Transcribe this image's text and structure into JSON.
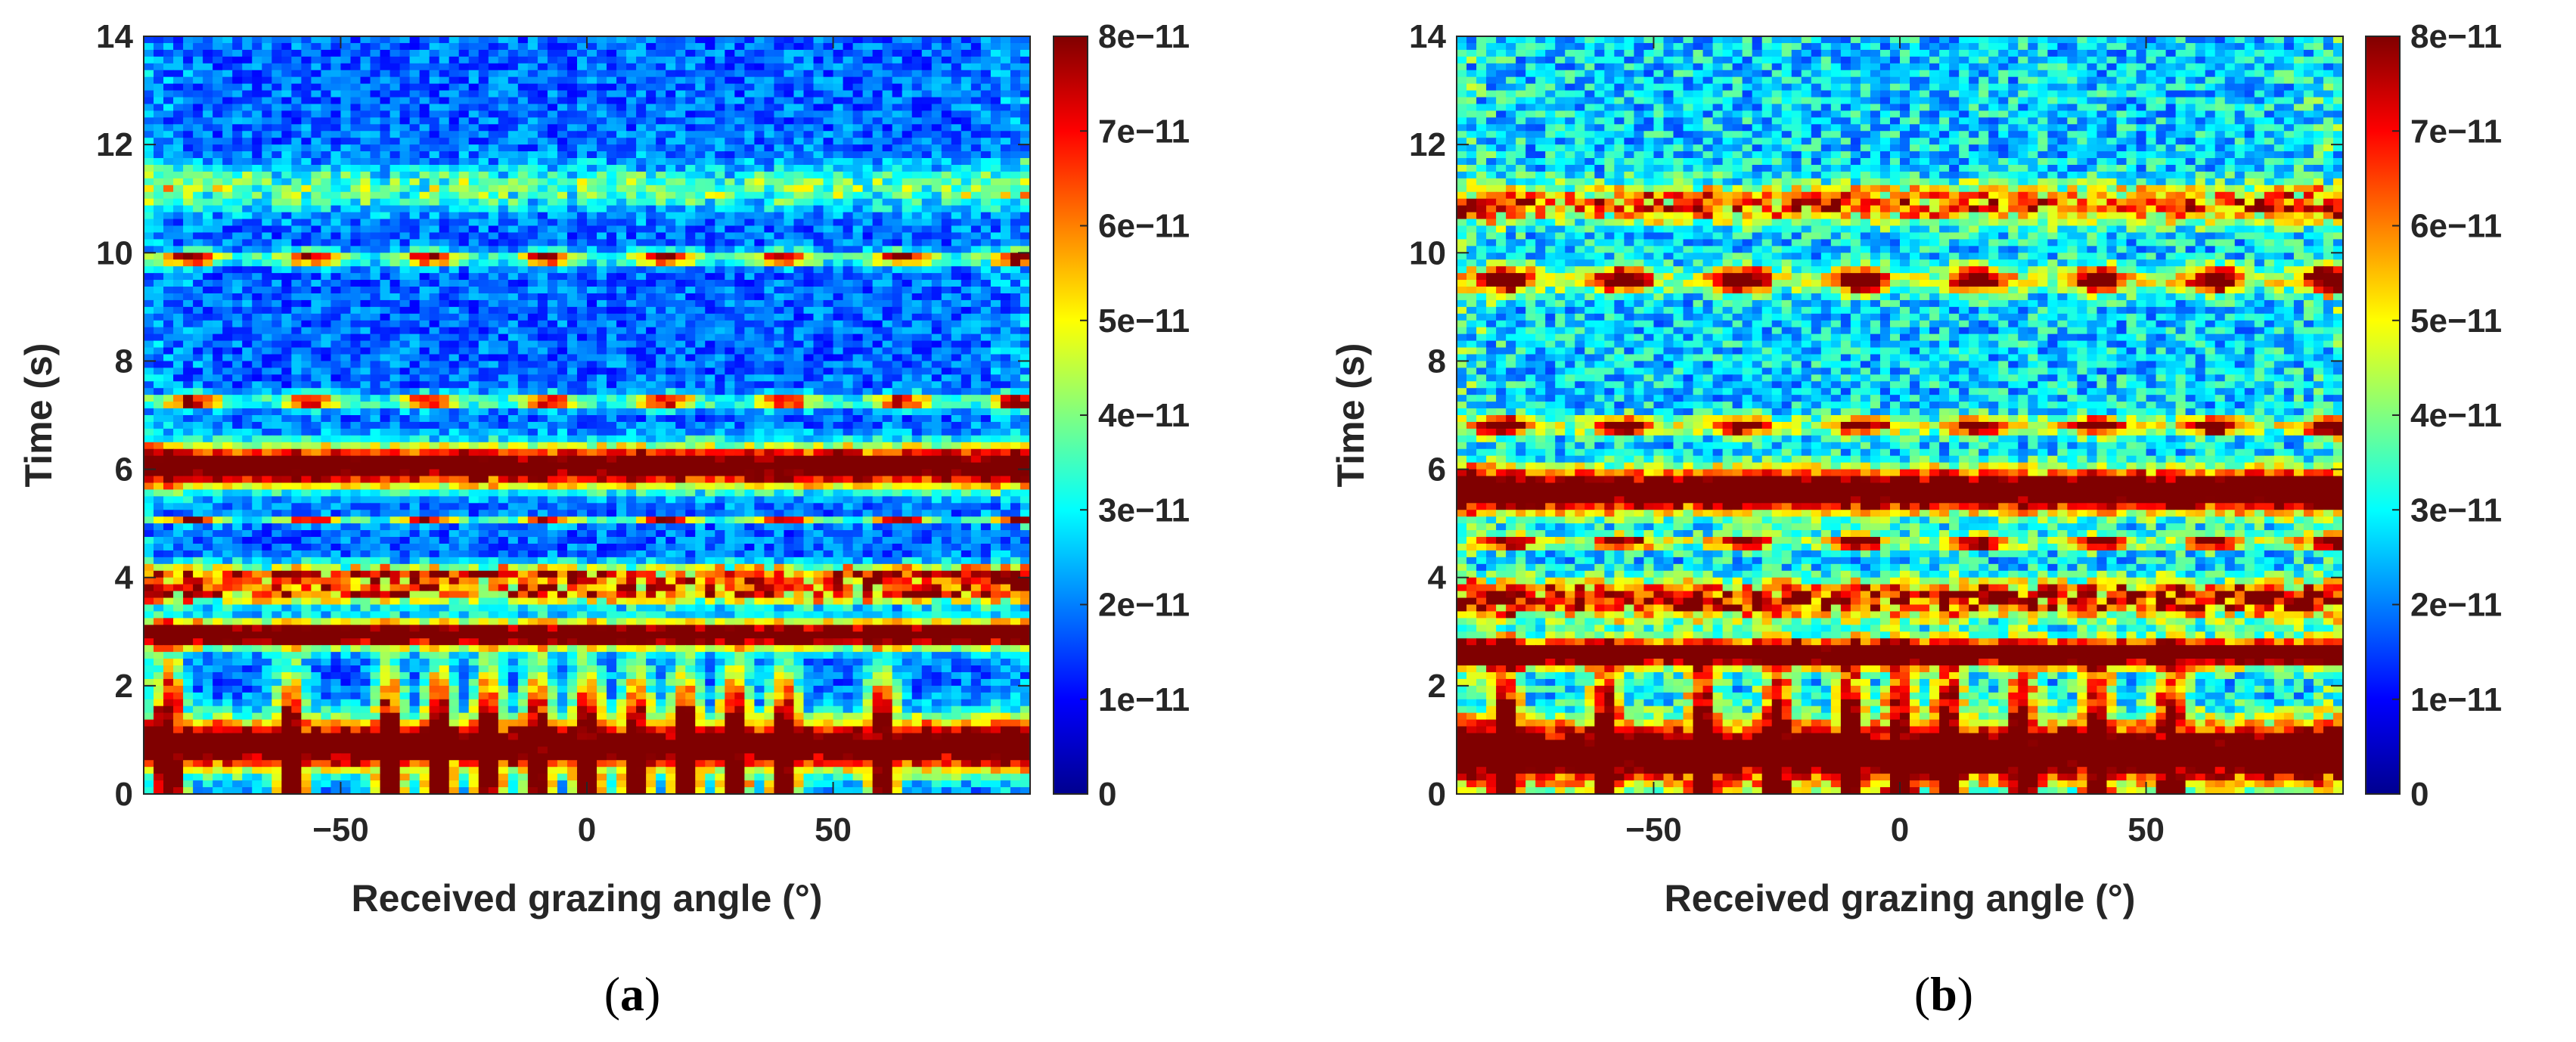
{
  "chart_data": [
    {
      "type": "heatmap",
      "panel_label": "a",
      "title": "",
      "xlabel": "Received grazing angle (°)",
      "ylabel": "Time (s)",
      "xlim": [
        -90,
        90
      ],
      "ylim": [
        0,
        14
      ],
      "xticks": [
        -50,
        0,
        50
      ],
      "yticks": [
        0,
        2,
        4,
        6,
        8,
        10,
        12,
        14
      ],
      "colorbar": {
        "limits": [
          0,
          8e-11
        ],
        "ticks": [
          "0",
          "1e−11",
          "2e−11",
          "3e−11",
          "4e−11",
          "5e−11",
          "6e−11",
          "7e−11",
          "8e−11"
        ],
        "colormap": "jet"
      },
      "background_level": 1.8e-11,
      "bands": [
        {
          "t": 0.9,
          "width": 0.7,
          "level": 8e-11,
          "coverage": "continuous",
          "peak_angles": [
            -85,
            -60,
            -40,
            -30,
            -20,
            -10,
            0,
            10,
            20,
            30,
            40,
            60
          ]
        },
        {
          "t": 2.95,
          "width": 0.35,
          "level": 8e-11,
          "coverage": "continuous"
        },
        {
          "t": 3.7,
          "width": 0.3,
          "level": 6.5e-11,
          "coverage": "patchy"
        },
        {
          "t": 4.05,
          "width": 0.3,
          "level": 7e-11,
          "coverage": "patchy"
        },
        {
          "t": 5.05,
          "width": 0.1,
          "level": 6e-11,
          "coverage": "dashed"
        },
        {
          "t": 6.05,
          "width": 0.55,
          "level": 8e-11,
          "coverage": "continuous"
        },
        {
          "t": 7.25,
          "width": 0.2,
          "level": 6.5e-11,
          "coverage": "dashed"
        },
        {
          "t": 9.9,
          "width": 0.2,
          "level": 6.5e-11,
          "coverage": "dashed"
        },
        {
          "t": 11.2,
          "width": 0.6,
          "level": 3e-11,
          "coverage": "patchy"
        }
      ]
    },
    {
      "type": "heatmap",
      "panel_label": "b",
      "title": "",
      "xlabel": "Received grazing angle (°)",
      "ylabel": "Time (s)",
      "xlim": [
        -90,
        90
      ],
      "ylim": [
        0,
        14
      ],
      "xticks": [
        -50,
        0,
        50
      ],
      "yticks": [
        0,
        2,
        4,
        6,
        8,
        10,
        12,
        14
      ],
      "colorbar": {
        "limits": [
          0,
          8e-11
        ],
        "ticks": [
          "0",
          "1e−11",
          "2e−11",
          "3e−11",
          "4e−11",
          "5e−11",
          "6e−11",
          "7e−11",
          "8e−11"
        ],
        "colormap": "jet"
      },
      "background_level": 2.7e-11,
      "bands": [
        {
          "t": 0.75,
          "width": 0.8,
          "level": 8e-11,
          "coverage": "continuous",
          "peak_angles": [
            -80,
            -60,
            -40,
            -25,
            -10,
            0,
            10,
            25,
            40,
            55
          ]
        },
        {
          "t": 2.6,
          "width": 0.35,
          "level": 8e-11,
          "coverage": "continuous"
        },
        {
          "t": 3.6,
          "width": 0.5,
          "level": 7e-11,
          "coverage": "patchy"
        },
        {
          "t": 4.65,
          "width": 0.2,
          "level": 6.5e-11,
          "coverage": "dashed"
        },
        {
          "t": 5.6,
          "width": 0.55,
          "level": 8e-11,
          "coverage": "continuous"
        },
        {
          "t": 6.8,
          "width": 0.25,
          "level": 7e-11,
          "coverage": "dashed"
        },
        {
          "t": 9.5,
          "width": 0.35,
          "level": 7.5e-11,
          "coverage": "dashed"
        },
        {
          "t": 10.9,
          "width": 0.5,
          "level": 5.5e-11,
          "coverage": "patchy"
        }
      ]
    }
  ]
}
